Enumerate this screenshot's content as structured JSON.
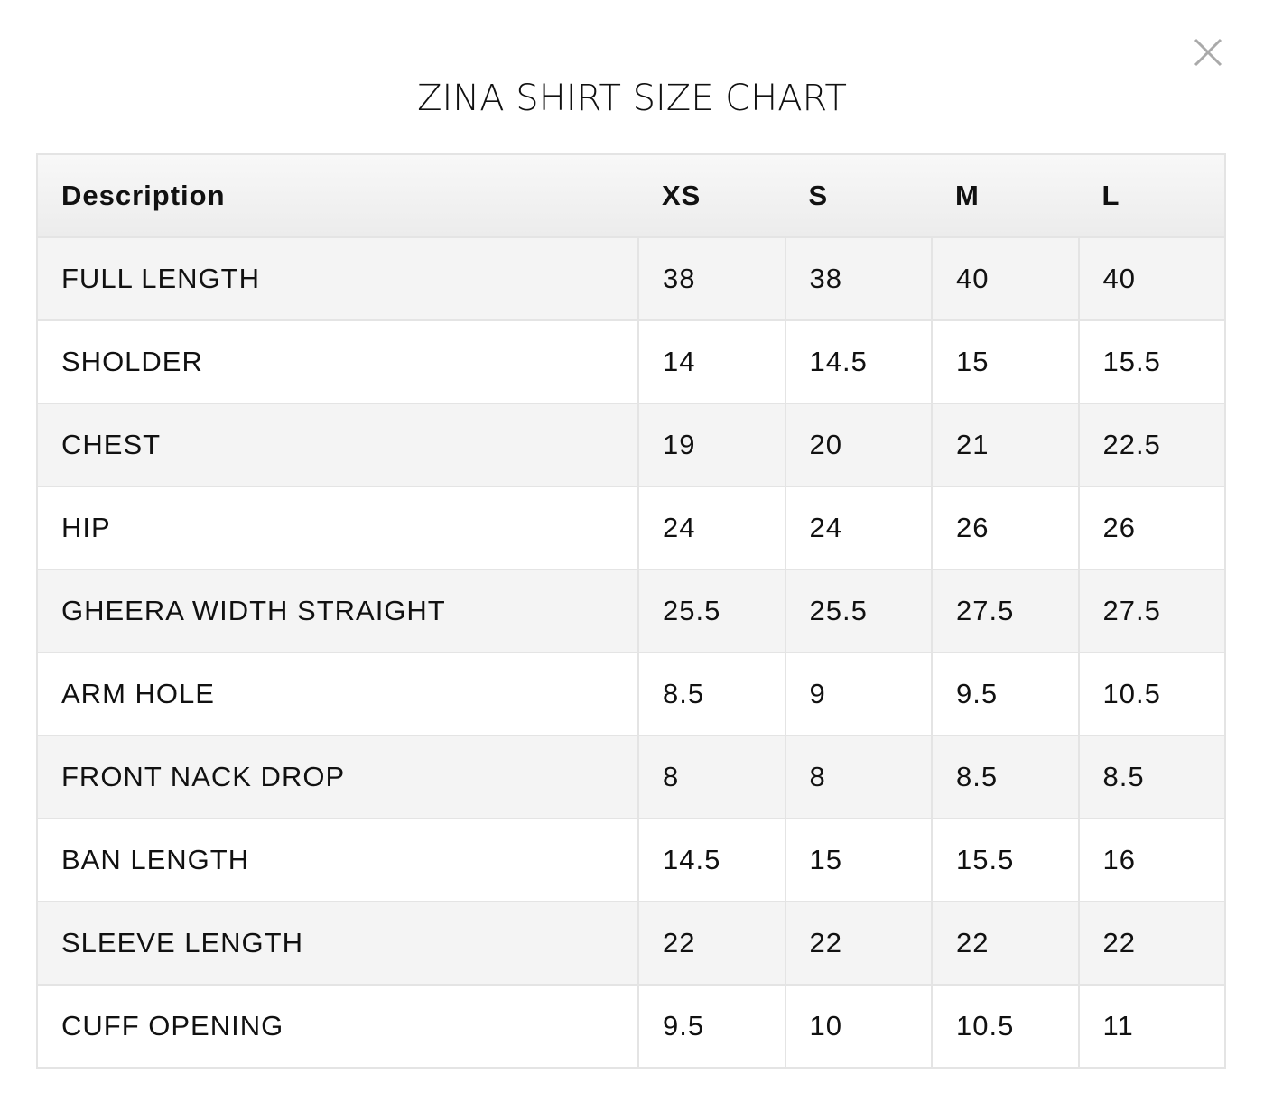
{
  "title": "ZINA SHIRT SIZE CHART",
  "table": {
    "header": [
      "Description",
      "XS",
      "S",
      "M",
      "L"
    ],
    "rows": [
      [
        "FULL LENGTH",
        "38",
        "38",
        "40",
        "40"
      ],
      [
        "SHOLDER",
        "14",
        "14.5",
        "15",
        "15.5"
      ],
      [
        "CHEST",
        "19",
        "20",
        "21",
        "22.5"
      ],
      [
        "HIP",
        "24",
        "24",
        "26",
        "26"
      ],
      [
        "GHEERA WIDTH STRAIGHT",
        "25.5",
        "25.5",
        "27.5",
        "27.5"
      ],
      [
        "ARM HOLE",
        "8.5",
        "9",
        "9.5",
        "10.5"
      ],
      [
        "FRONT NACK DROP",
        "8",
        "8",
        "8.5",
        "8.5"
      ],
      [
        "BAN LENGTH",
        "14.5",
        "15",
        "15.5",
        "16"
      ],
      [
        "SLEEVE LENGTH",
        "22",
        "22",
        "22",
        "22"
      ],
      [
        "CUFF OPENING",
        "9.5",
        "10",
        "10.5",
        "11"
      ]
    ]
  }
}
